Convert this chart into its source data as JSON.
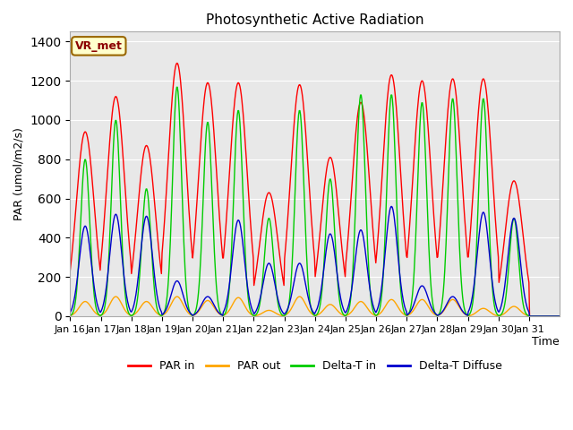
{
  "title": "Photosynthetic Active Radiation",
  "ylabel": "PAR (umol/m2/s)",
  "xlabel": "Time",
  "ylim": [
    0,
    1450
  ],
  "bg_color": "#e8e8e8",
  "fig_color": "#ffffff",
  "legend_labels": [
    "PAR in",
    "PAR out",
    "Delta-T in",
    "Delta-T Diffuse"
  ],
  "legend_colors": [
    "#ff0000",
    "#ffa500",
    "#00cc00",
    "#0000cd"
  ],
  "annotation_text": "VR_met",
  "annotation_bg": "#ffffcc",
  "annotation_border": "#996600",
  "x_tick_labels": [
    "Jan 16",
    "Jan 17",
    "Jan 18",
    "Jan 19",
    "Jan 20",
    "Jan 21",
    "Jan 22",
    "Jan 23",
    "Jan 24",
    "Jan 25",
    "Jan 26",
    "Jan 27",
    "Jan 28",
    "Jan 29",
    "Jan 30",
    "Jan 31"
  ],
  "day_peaks_par_in": [
    940,
    1120,
    870,
    1290,
    1190,
    1190,
    630,
    1180,
    810,
    1090,
    1230,
    1200,
    1210,
    1210,
    690,
    0
  ],
  "day_peaks_par_out": [
    75,
    100,
    75,
    100,
    80,
    95,
    30,
    100,
    60,
    75,
    85,
    85,
    85,
    40,
    50,
    0
  ],
  "day_peaks_green": [
    800,
    1000,
    650,
    1170,
    990,
    1050,
    500,
    1050,
    700,
    1130,
    1130,
    1090,
    1110,
    1110,
    500,
    0
  ],
  "day_peaks_blue": [
    460,
    520,
    510,
    180,
    100,
    490,
    270,
    270,
    420,
    440,
    560,
    155,
    100,
    530,
    500,
    0
  ],
  "n_points_per_day": 48,
  "n_days": 16
}
